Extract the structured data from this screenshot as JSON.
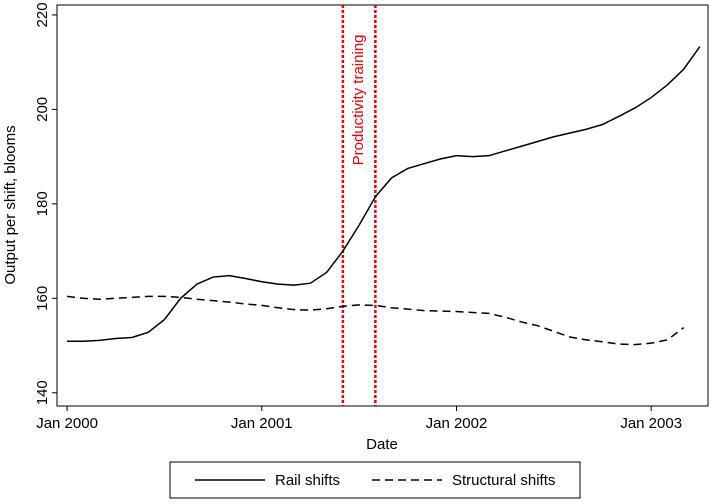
{
  "chart_data": {
    "type": "line",
    "xlabel": "Date",
    "ylabel": "Output per shift, blooms",
    "x": [
      0,
      1,
      2,
      3,
      4,
      5,
      6,
      7,
      8,
      9,
      10,
      11,
      12,
      13,
      14,
      15,
      16,
      17,
      18,
      19,
      20,
      21,
      22,
      23,
      24,
      25,
      26,
      27,
      28,
      29,
      30,
      31,
      32,
      33,
      34,
      35,
      36,
      37,
      38,
      39
    ],
    "series": [
      {
        "name": "Rail shifts",
        "color": "#000000",
        "dash": "solid",
        "values": [
          150.9,
          150.9,
          151.1,
          151.5,
          151.7,
          152.8,
          155.5,
          160,
          163,
          164.5,
          164.8,
          164.2,
          163.5,
          163,
          162.8,
          163.2,
          165.5,
          170,
          175.5,
          181.5,
          185.5,
          187.5,
          188.5,
          189.5,
          190.2,
          190,
          190.2,
          191.2,
          192.2,
          193.2,
          194.2,
          195,
          195.8,
          196.8,
          198.5,
          200.3,
          202.5,
          205.2,
          208.5,
          213.3
        ]
      },
      {
        "name": "Structural shifts",
        "color": "#000000",
        "dash": "dashed",
        "values": [
          160.4,
          160,
          159.8,
          160,
          160.2,
          160.4,
          160.4,
          160.2,
          159.8,
          159.5,
          159.2,
          158.8,
          158.5,
          158,
          157.6,
          157.5,
          157.8,
          158.3,
          158.6,
          158.5,
          158,
          157.7,
          157.4,
          157.3,
          157.2,
          157,
          156.8,
          156,
          155,
          154.2,
          153,
          151.8,
          151.2,
          150.8,
          150.3,
          150.2,
          150.5,
          151.2,
          153.8,
          null
        ]
      }
    ],
    "vlines": {
      "values": [
        17,
        19
      ],
      "color": "#e8000b",
      "label": "Productivity training",
      "label_x": 18,
      "label_y": 202
    },
    "xlim": [
      -0.62,
      39.5
    ],
    "ylim": [
      137.2,
      222.1
    ],
    "xticks": [
      {
        "value": 0,
        "label": "Jan 2000"
      },
      {
        "value": 12,
        "label": "Jan 2001"
      },
      {
        "value": 24,
        "label": "Jan 2002"
      },
      {
        "value": 36,
        "label": "Jan 2003"
      }
    ],
    "yticks": [
      140,
      160,
      180,
      200,
      220
    ],
    "legend": "bottom"
  }
}
